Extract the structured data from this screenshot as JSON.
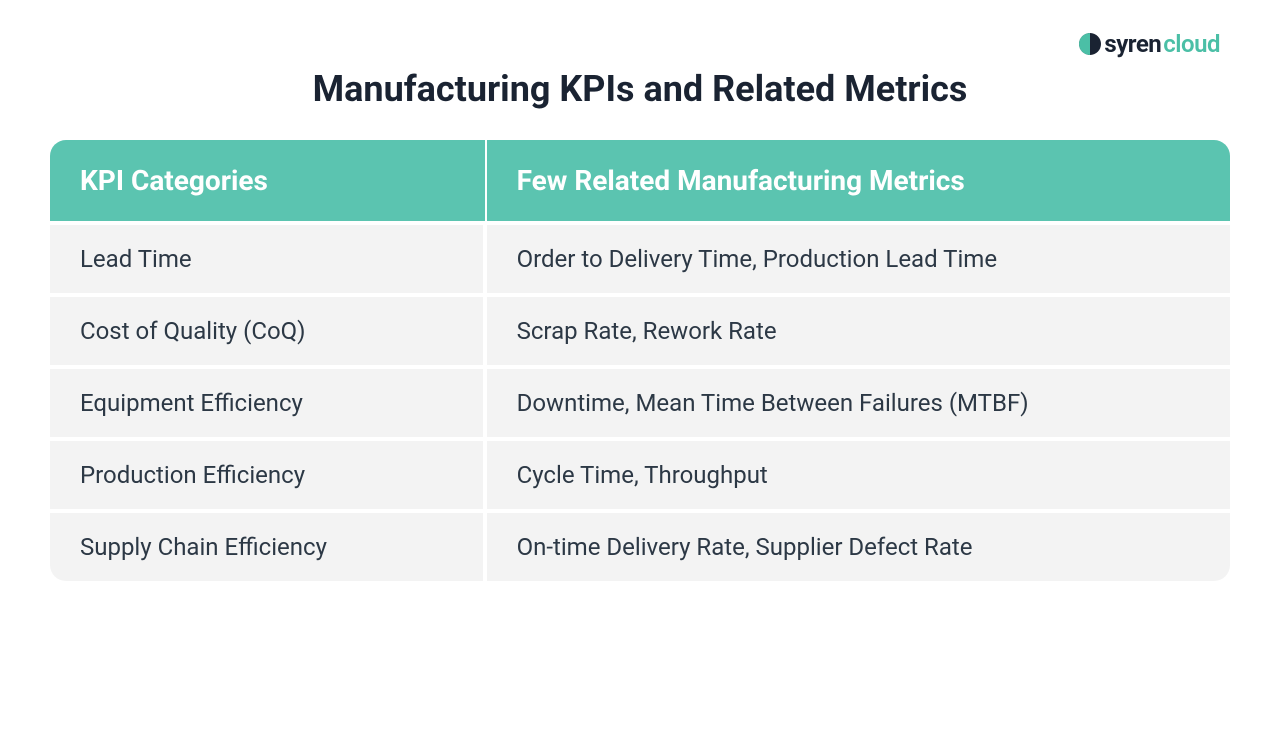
{
  "logo": {
    "brand_part1": "syren",
    "brand_part2": "cloud"
  },
  "title": "Manufacturing KPIs and Related Metrics",
  "table": {
    "type": "table",
    "header_bg_color": "#5bc4b0",
    "header_text_color": "#ffffff",
    "row_bg_color": "#f3f3f3",
    "cell_text_color": "#2c3845",
    "divider_color": "#ffffff",
    "border_radius": 16,
    "header_fontsize": 28,
    "cell_fontsize": 24,
    "col1_width_pct": 37,
    "col2_width_pct": 63,
    "columns": [
      "KPI Categories",
      "Few Related Manufacturing Metrics"
    ],
    "rows": [
      [
        "Lead Time",
        "Order to Delivery Time, Production Lead Time"
      ],
      [
        "Cost of Quality (CoQ)",
        "Scrap Rate, Rework Rate"
      ],
      [
        "Equipment Efficiency",
        "Downtime, Mean Time Between Failures (MTBF)"
      ],
      [
        "Production Efficiency",
        "Cycle Time, Throughput"
      ],
      [
        "Supply Chain Efficiency",
        "On-time Delivery Rate, Supplier Defect Rate"
      ]
    ]
  },
  "colors": {
    "background": "#ffffff",
    "title_color": "#1a2332",
    "logo_dark": "#1a2332",
    "logo_teal": "#4bbfa6"
  }
}
